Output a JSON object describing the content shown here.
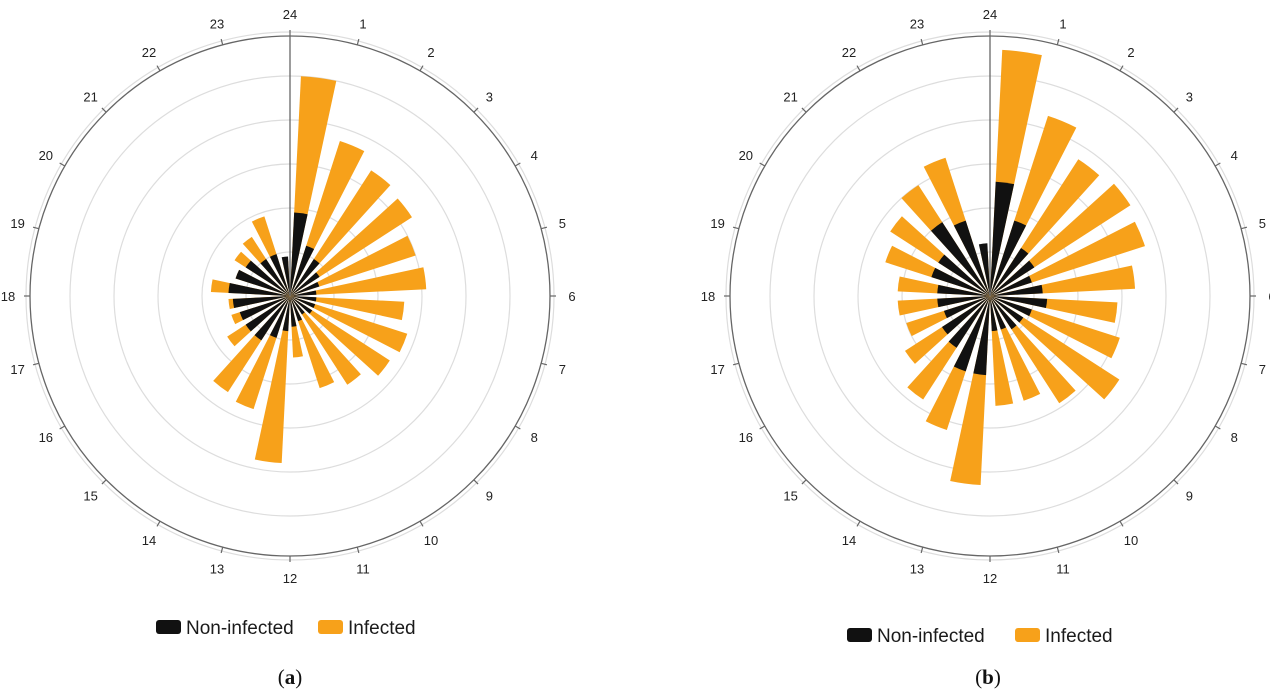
{
  "colors": {
    "non_infected": "#111111",
    "infected": "#F7A11A",
    "axis": "#666666",
    "grid": "#dddddd"
  },
  "chart_data": [
    {
      "type": "polar-bar",
      "panel": "a",
      "caption_open": "(",
      "caption_letter": "a",
      "caption_close": ")",
      "categories": [
        "1",
        "2",
        "3",
        "4",
        "5",
        "6",
        "7",
        "8",
        "9",
        "10",
        "11",
        "12",
        "13",
        "14",
        "15",
        "16",
        "17",
        "18",
        "19",
        "20",
        "21",
        "22",
        "23",
        "24"
      ],
      "legend": [
        "Non-infected",
        "Infected"
      ],
      "legend_position": "bottom",
      "rlim": [
        0,
        6
      ],
      "rings": [
        1,
        2,
        3,
        4,
        5,
        6
      ],
      "grid": true,
      "series": [
        {
          "name": "Non-infected",
          "values": [
            1.9,
            1.2,
            1.0,
            0.8,
            0.7,
            0.6,
            0.6,
            0.6,
            0.6,
            0.5,
            0.6,
            0.7,
            0.8,
            1.0,
            1.2,
            1.2,
            1.2,
            1.3,
            1.4,
            1.3,
            1.2,
            1.0,
            1.0,
            0.9
          ]
        },
        {
          "name": "Infected",
          "values": [
            5.0,
            3.7,
            3.4,
            3.3,
            3.0,
            3.1,
            2.6,
            2.8,
            2.7,
            2.4,
            2.2,
            1.4,
            3.8,
            2.7,
            2.6,
            1.7,
            1.4,
            1.4,
            1.8,
            1.3,
            1.5,
            1.6,
            1.9,
            0.8
          ]
        }
      ]
    },
    {
      "type": "polar-bar",
      "panel": "b",
      "caption_open": "(",
      "caption_letter": "b",
      "caption_close": ")",
      "categories": [
        "1",
        "2",
        "3",
        "4",
        "5",
        "6",
        "7",
        "8",
        "9",
        "10",
        "11",
        "12",
        "13",
        "14",
        "15",
        "16",
        "17",
        "18",
        "19",
        "20",
        "21",
        "22",
        "23",
        "24"
      ],
      "legend": [
        "Non-infected",
        "Infected"
      ],
      "legend_position": "bottom",
      "rlim": [
        0,
        6
      ],
      "rings": [
        1,
        2,
        3,
        4,
        5,
        6
      ],
      "grid": true,
      "series": [
        {
          "name": "Non-infected",
          "values": [
            2.6,
            1.8,
            1.3,
            1.2,
            1.0,
            1.2,
            1.3,
            1.0,
            0.9,
            0.9,
            0.8,
            0.8,
            1.8,
            1.8,
            1.4,
            1.3,
            1.1,
            1.2,
            1.2,
            1.4,
            1.4,
            2.0,
            1.8,
            1.2
          ]
        },
        {
          "name": "Infected",
          "values": [
            5.6,
            4.3,
            3.7,
            3.8,
            3.7,
            3.3,
            2.9,
            3.1,
            3.5,
            2.9,
            2.5,
            2.5,
            4.3,
            3.2,
            2.8,
            2.3,
            2.0,
            2.1,
            2.1,
            2.5,
            2.7,
            3.0,
            3.3,
            1.0
          ]
        }
      ]
    }
  ]
}
